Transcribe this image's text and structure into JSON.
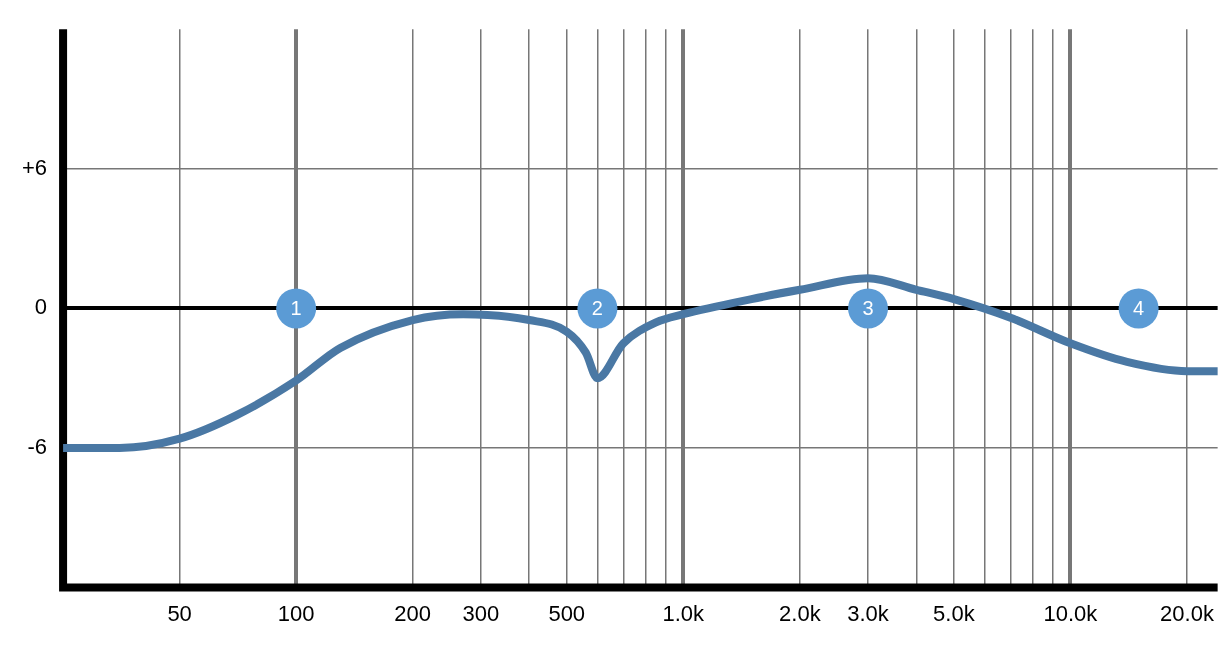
{
  "chart_data": {
    "type": "line",
    "log": "x",
    "x": [
      25,
      35,
      50,
      70,
      100,
      130,
      200,
      270,
      400,
      500,
      560,
      600,
      700,
      850,
      1000,
      1500,
      2000,
      3000,
      4000,
      5000,
      7000,
      10000,
      14000,
      20000,
      24000
    ],
    "series": [
      {
        "color": "#4a78a4",
        "values": [
          -6,
          -6,
          -5.6,
          -4.6,
          -3.1,
          -1.7,
          -0.5,
          -0.25,
          -0.5,
          -1,
          -1.9,
          -3,
          -1.5,
          -0.6,
          -0.25,
          0.4,
          0.8,
          1.3,
          0.8,
          0.4,
          -0.4,
          -1.5,
          -2.3,
          -2.7,
          -2.7
        ]
      }
    ],
    "xlim": [
      25,
      24000
    ],
    "xticks": [
      50,
      100,
      200,
      300,
      {
        "value": 400,
        "label": null
      },
      500,
      {
        "value": 600,
        "label": null
      },
      {
        "value": 700,
        "label": null
      },
      {
        "value": 800,
        "label": null
      },
      {
        "value": 900,
        "label": null
      },
      {
        "value": 1000,
        "label": "1.0k"
      },
      {
        "value": 2000,
        "label": "2.0k"
      },
      {
        "value": 3000,
        "label": "3.0k"
      },
      {
        "value": 4000,
        "label": null
      },
      {
        "value": 5000,
        "label": "5.0k"
      },
      {
        "value": 6000,
        "label": null
      },
      {
        "value": 7000,
        "label": null
      },
      {
        "value": 8000,
        "label": null
      },
      {
        "value": 9000,
        "label": null
      },
      {
        "value": 10000,
        "label": "10.0k"
      },
      {
        "value": 20000,
        "label": "20.0k"
      }
    ],
    "ylim": [
      -12,
      12
    ],
    "yticks": [
      {
        "value": -6,
        "label": "-6"
      },
      0,
      {
        "value": 6,
        "label": "+6"
      }
    ],
    "grid": true,
    "legend": false,
    "marker": "none",
    "line_style": "solid",
    "annotations": [
      {
        "text": "1",
        "x": 100,
        "y": 0
      },
      {
        "text": "2",
        "x": 600,
        "y": 0
      },
      {
        "text": "3",
        "x": 3000,
        "y": 0
      },
      {
        "text": "4",
        "x": 15000,
        "y": 0
      }
    ]
  }
}
